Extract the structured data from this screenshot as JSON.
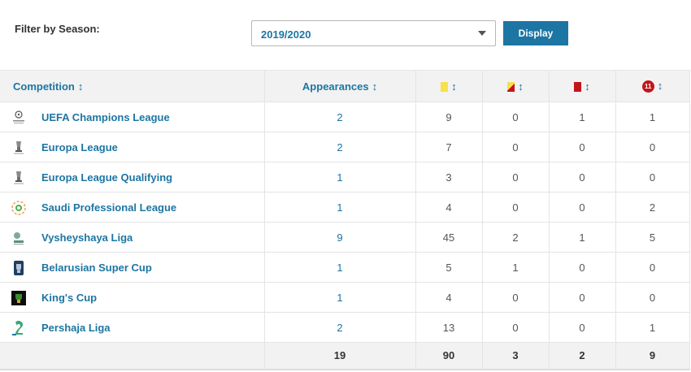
{
  "filter": {
    "label": "Filter by Season:",
    "season": "2019/2020",
    "button_label": "Display"
  },
  "table": {
    "headers": {
      "competition": "Competition",
      "appearances": "Appearances",
      "sort_glyph": "↕",
      "sub_icon_text": "11"
    },
    "rows": [
      {
        "competition": "UEFA Champions League",
        "appearances": "2",
        "goals": "9",
        "yellow_red": "0",
        "red": "1",
        "subbed": "1",
        "logo": "champions-league-logo"
      },
      {
        "competition": "Europa League",
        "appearances": "2",
        "goals": "7",
        "yellow_red": "0",
        "red": "0",
        "subbed": "0",
        "logo": "europa-league-logo"
      },
      {
        "competition": "Europa League Qualifying",
        "appearances": "1",
        "goals": "3",
        "yellow_red": "0",
        "red": "0",
        "subbed": "0",
        "logo": "europa-league-logo"
      },
      {
        "competition": "Saudi Professional League",
        "appearances": "1",
        "goals": "4",
        "yellow_red": "0",
        "red": "0",
        "subbed": "2",
        "logo": "saudi-league-logo"
      },
      {
        "competition": "Vysheyshaya Liga",
        "appearances": "9",
        "goals": "45",
        "yellow_red": "2",
        "red": "1",
        "subbed": "5",
        "logo": "vysheyshaya-logo"
      },
      {
        "competition": "Belarusian Super Cup",
        "appearances": "1",
        "goals": "5",
        "yellow_red": "1",
        "red": "0",
        "subbed": "0",
        "logo": "super-cup-logo"
      },
      {
        "competition": "King's Cup",
        "appearances": "1",
        "goals": "4",
        "yellow_red": "0",
        "red": "0",
        "subbed": "0",
        "logo": "kings-cup-logo"
      },
      {
        "competition": "Pershaja Liga",
        "appearances": "2",
        "goals": "13",
        "yellow_red": "0",
        "red": "0",
        "subbed": "1",
        "logo": "pershaja-logo"
      }
    ],
    "totals": {
      "appearances": "19",
      "goals": "90",
      "yellow_red": "3",
      "red": "2",
      "subbed": "9"
    }
  },
  "colors": {
    "accent": "#1d75a3",
    "yellow_card": "#f7e14b",
    "red_card": "#c3141a",
    "header_bg": "#f2f2f2"
  }
}
